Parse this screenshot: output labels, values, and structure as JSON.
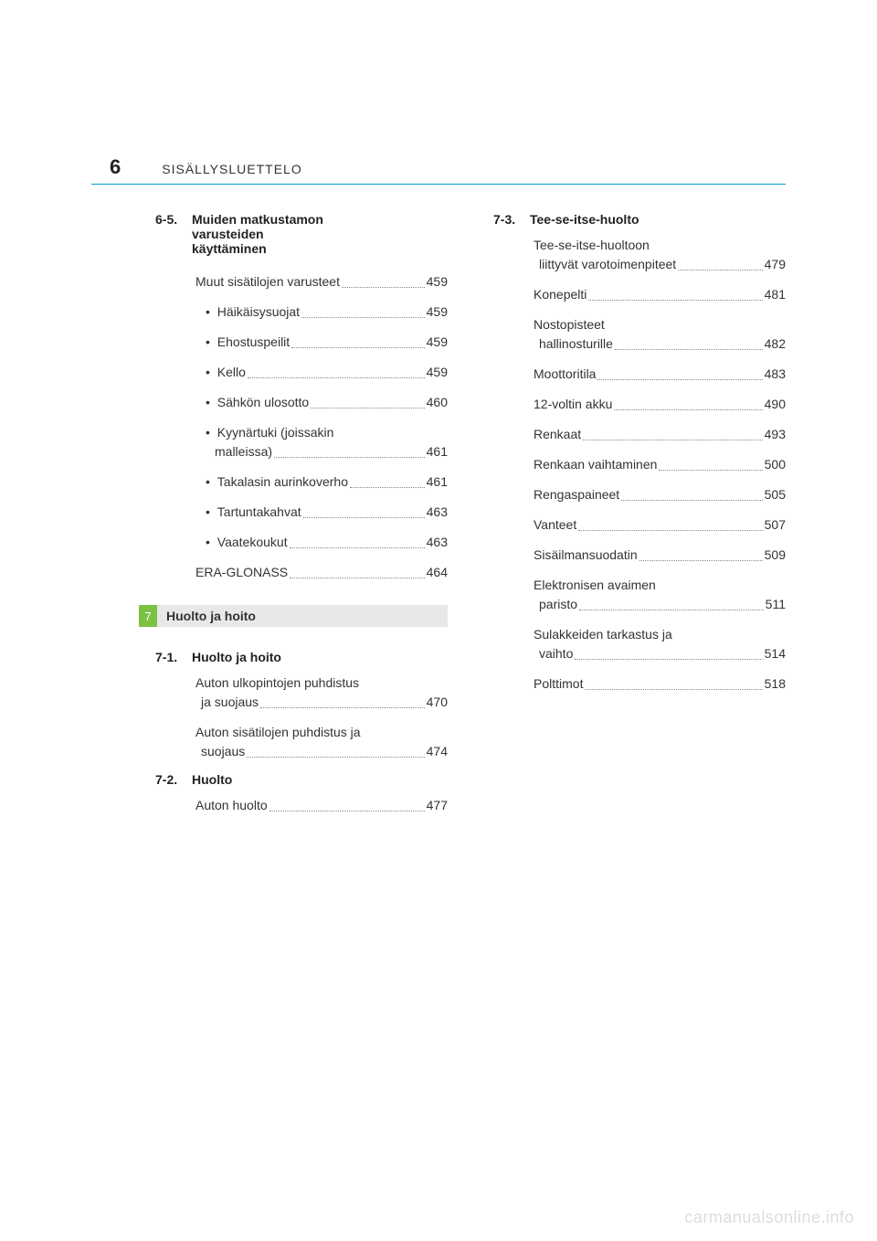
{
  "header": {
    "pageNumber": "6",
    "title": "SISÄLLYSLUETTELO"
  },
  "chapter": {
    "number": "7",
    "title": "Huolto ja hoito"
  },
  "leftColumn": {
    "sections": [
      {
        "num": "6-5.",
        "title": "Muiden matkustamon varusteiden käyttäminen",
        "titleLines": [
          "Muiden matkustamon",
          "varusteiden",
          "käyttäminen"
        ],
        "entries": [
          {
            "label": "Muut sisätilojen varusteet",
            "page": "459",
            "indent": 1
          },
          {
            "label": "Häikäisysuojat",
            "page": "459",
            "indent": 2,
            "bullet": true
          },
          {
            "label": "Ehostuspeilit",
            "page": "459",
            "indent": 2,
            "bullet": true
          },
          {
            "label": "Kello",
            "page": "459",
            "indent": 2,
            "bullet": true
          },
          {
            "label": "Sähkön ulosotto",
            "page": "460",
            "indent": 2,
            "bullet": true
          },
          {
            "label": "Kyynärtuki (joissakin",
            "cont": "malleissa)",
            "page": "461",
            "indent": 2,
            "bullet": true,
            "multiline": true
          },
          {
            "label": "Takalasin aurinkoverho",
            "page": "461",
            "indent": 2,
            "bullet": true
          },
          {
            "label": "Tartuntakahvat",
            "page": "463",
            "indent": 2,
            "bullet": true
          },
          {
            "label": "Vaatekoukut",
            "page": "463",
            "indent": 2,
            "bullet": true
          },
          {
            "label": "ERA-GLONASS",
            "page": "464",
            "indent": 1
          }
        ]
      }
    ],
    "afterChapterSections": [
      {
        "num": "7-1.",
        "title": "Huolto ja hoito",
        "entries": [
          {
            "label": "Auton ulkopintojen puhdistus",
            "cont": "ja suojaus",
            "page": "470",
            "indent": 1,
            "multiline": true
          },
          {
            "label": "Auton sisätilojen puhdistus ja",
            "cont": "suojaus",
            "page": "474",
            "indent": 1,
            "multiline": true
          }
        ]
      },
      {
        "num": "7-2.",
        "title": "Huolto",
        "entries": [
          {
            "label": "Auton huolto",
            "page": "477",
            "indent": 1
          }
        ]
      }
    ]
  },
  "rightColumn": {
    "sections": [
      {
        "num": "7-3.",
        "title": "Tee-se-itse-huolto",
        "entries": [
          {
            "label": "Tee-se-itse-huoltoon",
            "cont": "liittyvät varotoimenpiteet",
            "page": "479",
            "indent": 1,
            "multiline": true
          },
          {
            "label": "Konepelti",
            "page": "481",
            "indent": 1
          },
          {
            "label": "Nostopisteet",
            "cont": "hallinosturille",
            "page": "482",
            "indent": 1,
            "multiline": true
          },
          {
            "label": "Moottoritila",
            "page": "483",
            "indent": 1
          },
          {
            "label": "12-voltin akku",
            "page": "490",
            "indent": 1
          },
          {
            "label": "Renkaat",
            "page": "493",
            "indent": 1
          },
          {
            "label": "Renkaan vaihtaminen",
            "page": "500",
            "indent": 1
          },
          {
            "label": "Rengaspaineet",
            "page": "505",
            "indent": 1
          },
          {
            "label": "Vanteet",
            "page": "507",
            "indent": 1
          },
          {
            "label": "Sisäilmansuodatin",
            "page": "509",
            "indent": 1
          },
          {
            "label": "Elektronisen avaimen",
            "cont": "paristo",
            "page": "511",
            "indent": 1,
            "multiline": true
          },
          {
            "label": "Sulakkeiden tarkastus ja",
            "cont": "vaihto",
            "page": "514",
            "indent": 1,
            "multiline": true
          },
          {
            "label": "Polttimot",
            "page": "518",
            "indent": 1
          }
        ]
      }
    ]
  },
  "watermark": "carmanualsonline.info",
  "colors": {
    "headerBorder": "#00a0d2",
    "chapterGreen": "#7cc142",
    "chapterGray": "#e8e8e8",
    "text": "#333333",
    "watermark": "#dddddd"
  }
}
